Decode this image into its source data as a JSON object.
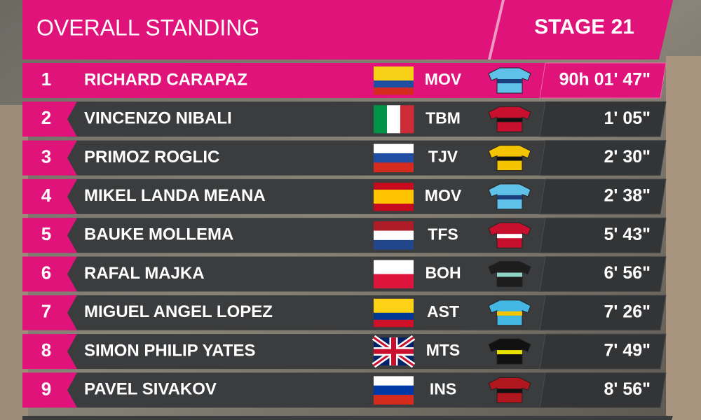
{
  "header": {
    "title": "OVERALL STANDING",
    "stage": "STAGE 21"
  },
  "rows": [
    {
      "rank": 1,
      "name": "RICHARD CARAPAZ",
      "team": "MOV",
      "time": "90h 01' 47\""
    },
    {
      "rank": 2,
      "name": "VINCENZO NIBALI",
      "team": "TBM",
      "time": "1' 05\""
    },
    {
      "rank": 3,
      "name": "PRIMOZ ROGLIC",
      "team": "TJV",
      "time": "2' 30\""
    },
    {
      "rank": 4,
      "name": "MIKEL LANDA MEANA",
      "team": "MOV",
      "time": "2' 38\""
    },
    {
      "rank": 5,
      "name": "BAUKE MOLLEMA",
      "team": "TFS",
      "time": "5' 43\""
    },
    {
      "rank": 6,
      "name": "RAFAL MAJKA",
      "team": "BOH",
      "time": "6' 56\""
    },
    {
      "rank": 7,
      "name": "MIGUEL ANGEL LOPEZ",
      "team": "AST",
      "time": "7' 26\""
    },
    {
      "rank": 8,
      "name": "SIMON PHILIP YATES",
      "team": "MTS",
      "time": "7' 49\""
    },
    {
      "rank": 9,
      "name": "PAVEL SIVAKOV",
      "team": "INS",
      "time": "8' 56\""
    }
  ]
}
